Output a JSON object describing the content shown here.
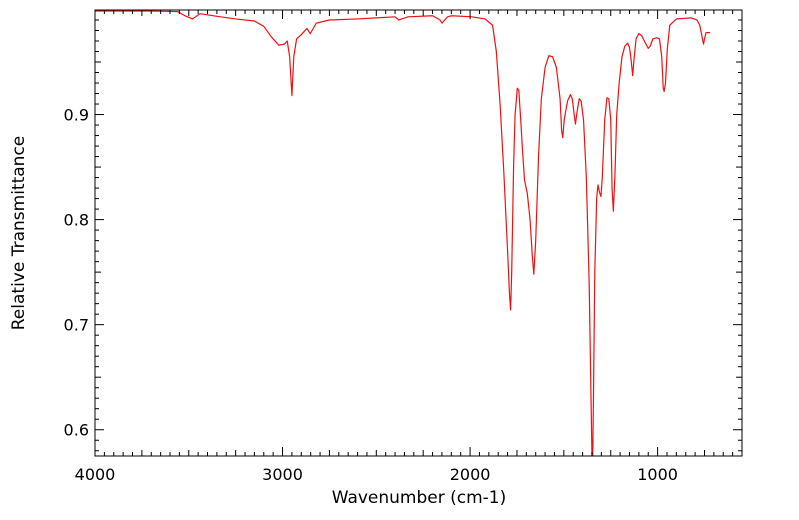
{
  "chart_data": {
    "type": "line",
    "title": "",
    "xlabel": "Wavenumber (cm-1)",
    "ylabel": "Relative Transmittance",
    "xlim": [
      4000,
      550
    ],
    "ylim": [
      0.575,
      0.9995
    ],
    "x_ticks": [
      4000,
      3000,
      2000,
      1000
    ],
    "x_tick_labels": [
      "4000",
      "3000",
      "2000",
      "1000"
    ],
    "y_ticks": [
      0.6,
      0.7,
      0.8,
      0.9
    ],
    "y_tick_labels": [
      "0.6",
      "0.7",
      "0.8",
      "0.9"
    ],
    "grid": false,
    "legend": "none",
    "series": [
      {
        "color": "#ee1111",
        "points": [
          [
            4000,
            0.9985
          ],
          [
            3700,
            0.9985
          ],
          [
            3560,
            0.998
          ],
          [
            3520,
            0.994
          ],
          [
            3480,
            0.991
          ],
          [
            3440,
            0.996
          ],
          [
            3350,
            0.9935
          ],
          [
            3250,
            0.991
          ],
          [
            3150,
            0.989
          ],
          [
            3100,
            0.984
          ],
          [
            3060,
            0.974
          ],
          [
            3020,
            0.966
          ],
          [
            2990,
            0.967
          ],
          [
            2975,
            0.97
          ],
          [
            2962,
            0.955
          ],
          [
            2950,
            0.918
          ],
          [
            2940,
            0.955
          ],
          [
            2925,
            0.972
          ],
          [
            2900,
            0.976
          ],
          [
            2870,
            0.982
          ],
          [
            2852,
            0.977
          ],
          [
            2820,
            0.987
          ],
          [
            2750,
            0.99
          ],
          [
            2600,
            0.991
          ],
          [
            2500,
            0.992
          ],
          [
            2400,
            0.993
          ],
          [
            2380,
            0.99
          ],
          [
            2330,
            0.993
          ],
          [
            2200,
            0.994
          ],
          [
            2160,
            0.99
          ],
          [
            2150,
            0.987
          ],
          [
            2120,
            0.993
          ],
          [
            2100,
            0.994
          ],
          [
            1990,
            0.993
          ],
          [
            1920,
            0.991
          ],
          [
            1880,
            0.985
          ],
          [
            1860,
            0.96
          ],
          [
            1840,
            0.91
          ],
          [
            1820,
            0.845
          ],
          [
            1800,
            0.77
          ],
          [
            1790,
            0.73
          ],
          [
            1784,
            0.714
          ],
          [
            1778,
            0.75
          ],
          [
            1768,
            0.85
          ],
          [
            1760,
            0.9
          ],
          [
            1748,
            0.925
          ],
          [
            1740,
            0.923
          ],
          [
            1730,
            0.895
          ],
          [
            1720,
            0.865
          ],
          [
            1710,
            0.838
          ],
          [
            1695,
            0.825
          ],
          [
            1680,
            0.8
          ],
          [
            1668,
            0.765
          ],
          [
            1660,
            0.748
          ],
          [
            1650,
            0.78
          ],
          [
            1635,
            0.86
          ],
          [
            1620,
            0.915
          ],
          [
            1600,
            0.945
          ],
          [
            1580,
            0.956
          ],
          [
            1560,
            0.955
          ],
          [
            1540,
            0.945
          ],
          [
            1520,
            0.915
          ],
          [
            1512,
            0.885
          ],
          [
            1506,
            0.878
          ],
          [
            1498,
            0.895
          ],
          [
            1480,
            0.913
          ],
          [
            1465,
            0.919
          ],
          [
            1455,
            0.915
          ],
          [
            1445,
            0.9
          ],
          [
            1438,
            0.891
          ],
          [
            1430,
            0.902
          ],
          [
            1418,
            0.915
          ],
          [
            1408,
            0.913
          ],
          [
            1395,
            0.895
          ],
          [
            1380,
            0.84
          ],
          [
            1365,
            0.74
          ],
          [
            1355,
            0.63
          ],
          [
            1350,
            0.575
          ],
          [
            1346,
            0.575
          ],
          [
            1342,
            0.63
          ],
          [
            1335,
            0.75
          ],
          [
            1325,
            0.82
          ],
          [
            1318,
            0.833
          ],
          [
            1310,
            0.826
          ],
          [
            1302,
            0.822
          ],
          [
            1295,
            0.84
          ],
          [
            1282,
            0.895
          ],
          [
            1270,
            0.916
          ],
          [
            1260,
            0.915
          ],
          [
            1250,
            0.895
          ],
          [
            1243,
            0.83
          ],
          [
            1236,
            0.808
          ],
          [
            1228,
            0.84
          ],
          [
            1218,
            0.9
          ],
          [
            1205,
            0.93
          ],
          [
            1190,
            0.955
          ],
          [
            1175,
            0.965
          ],
          [
            1160,
            0.968
          ],
          [
            1150,
            0.964
          ],
          [
            1140,
            0.95
          ],
          [
            1133,
            0.937
          ],
          [
            1126,
            0.952
          ],
          [
            1115,
            0.972
          ],
          [
            1100,
            0.977
          ],
          [
            1085,
            0.975
          ],
          [
            1065,
            0.968
          ],
          [
            1050,
            0.963
          ],
          [
            1040,
            0.965
          ],
          [
            1025,
            0.972
          ],
          [
            1005,
            0.973
          ],
          [
            990,
            0.972
          ],
          [
            978,
            0.955
          ],
          [
            970,
            0.925
          ],
          [
            965,
            0.922
          ],
          [
            958,
            0.93
          ],
          [
            948,
            0.963
          ],
          [
            935,
            0.985
          ],
          [
            900,
            0.991
          ],
          [
            820,
            0.992
          ],
          [
            790,
            0.99
          ],
          [
            775,
            0.985
          ],
          [
            765,
            0.976
          ],
          [
            760,
            0.971
          ],
          [
            755,
            0.967
          ],
          [
            750,
            0.972
          ],
          [
            742,
            0.978
          ],
          [
            720,
            0.978
          ]
        ]
      }
    ]
  }
}
